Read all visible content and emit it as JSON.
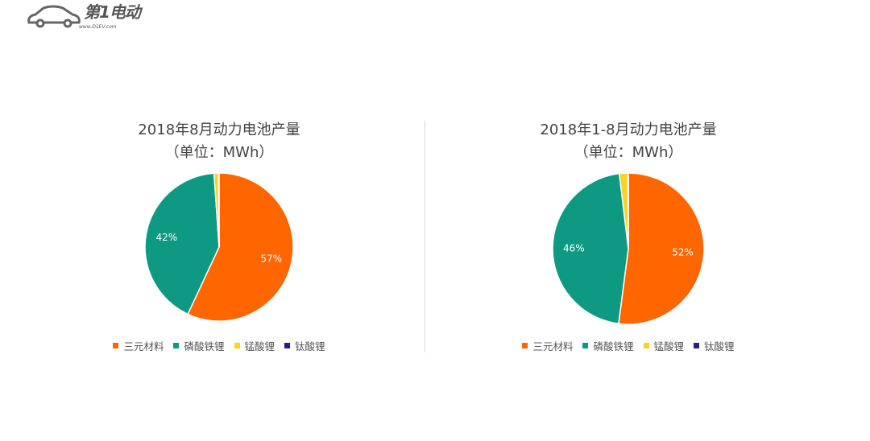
{
  "logo": {
    "text": "第1电动",
    "url": "www.D1EV.com"
  },
  "colors": {
    "三元材料": "#FF6600",
    "磷酸铁锂": "#0E9A82",
    "锰酸锂": "#F5D327",
    "钛酸锂": "#2E1A8A"
  },
  "chart_data": [
    {
      "type": "pie",
      "title": "2018年8月动力电池产量",
      "subtitle": "（单位：MWh）",
      "labels": [
        "三元材料",
        "磷酸铁锂",
        "锰酸锂",
        "钛酸锂"
      ],
      "values": [
        57,
        42,
        1,
        0.1
      ],
      "data_labels": [
        "57%",
        "42%",
        "",
        ""
      ],
      "legend": "bottom"
    },
    {
      "type": "pie",
      "title": "2018年1-8月动力电池产量",
      "subtitle": "（单位：MWh）",
      "labels": [
        "三元材料",
        "磷酸铁锂",
        "锰酸锂",
        "钛酸锂"
      ],
      "values": [
        52,
        46,
        1.8,
        0.1
      ],
      "data_labels": [
        "52%",
        "46%",
        "",
        ""
      ],
      "legend": "bottom"
    }
  ]
}
